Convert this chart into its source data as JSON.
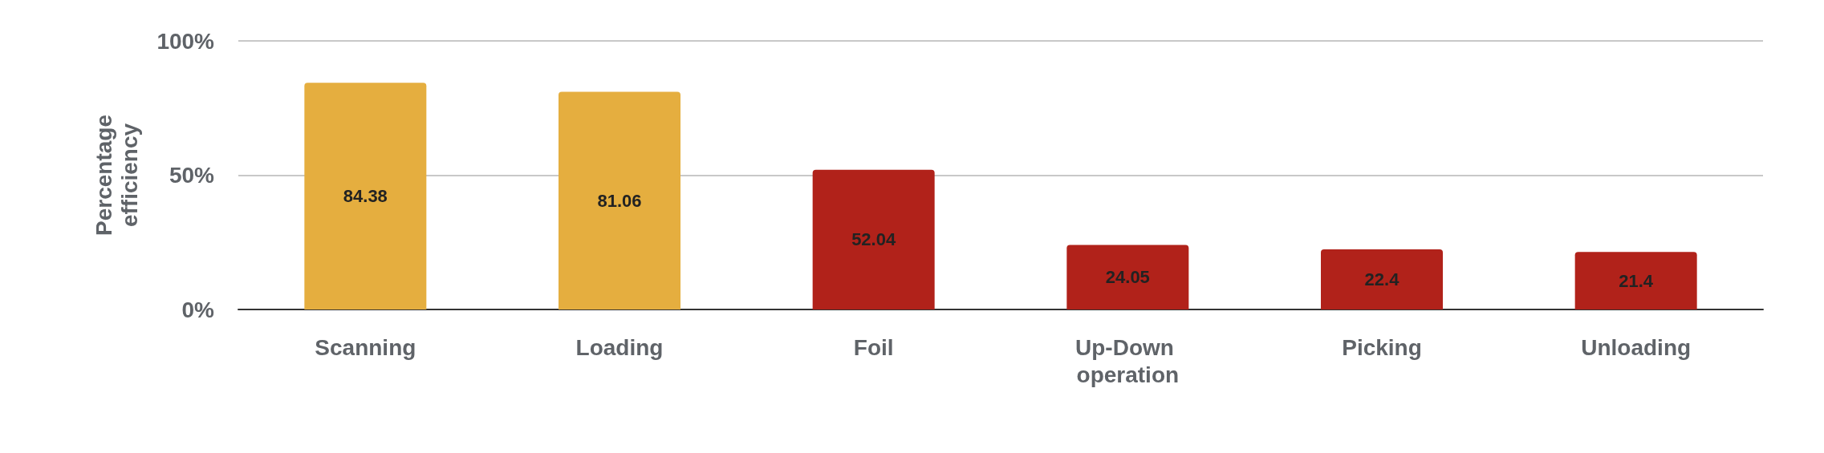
{
  "chart_data": {
    "type": "bar",
    "ylabel": "Percentage efficiency",
    "categories": [
      "Scanning",
      "Loading",
      "Foil",
      "Up-Down operation",
      "Picking",
      "Unloading"
    ],
    "values": [
      84.38,
      81.06,
      52.04,
      24.05,
      22.4,
      21.4
    ],
    "colors": [
      "#e5ae3f",
      "#e5ae3f",
      "#b1221a",
      "#b1221a",
      "#b1221a",
      "#b1221a"
    ],
    "ylim": [
      0,
      100
    ],
    "yticks": [
      {
        "value": 0,
        "label": "0%"
      },
      {
        "value": 50,
        "label": "50%"
      },
      {
        "value": 100,
        "label": "100%"
      }
    ],
    "grid": "y",
    "data_labels": true
  }
}
